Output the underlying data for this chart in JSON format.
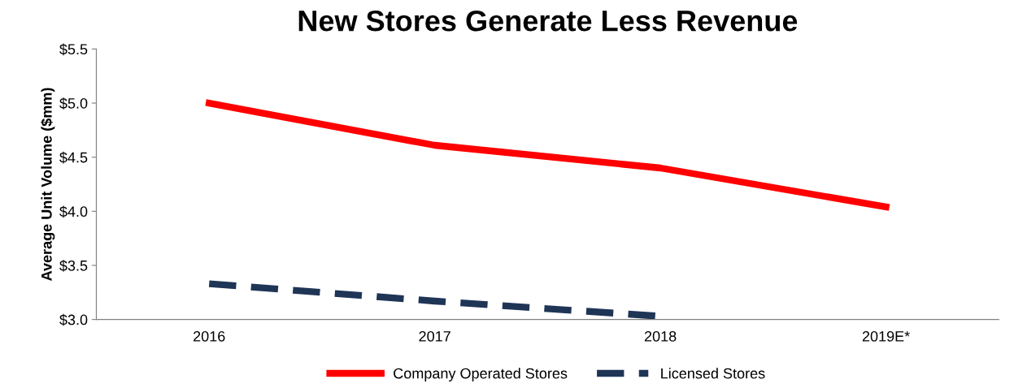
{
  "chart_data": {
    "type": "line",
    "title": "New Stores Generate Less Revenue",
    "ylabel": "Average Unit Volume ($mm)",
    "categories": [
      "2016",
      "2017",
      "2018",
      "2019E*"
    ],
    "series": [
      {
        "name": "Company Operated Stores",
        "color": "#ff0000",
        "values": [
          5.0,
          4.61,
          4.4,
          4.04
        ],
        "line_style": "solid"
      },
      {
        "name": "Licensed Stores",
        "color": "#1f3556",
        "values": [
          3.33,
          3.17,
          3.03,
          null
        ],
        "line_style": "dashed"
      }
    ],
    "ylim": [
      3.0,
      5.5
    ],
    "yticks": [
      {
        "value": 3.0,
        "label": "$3.0"
      },
      {
        "value": 3.5,
        "label": "$3.5"
      },
      {
        "value": 4.0,
        "label": "$4.0"
      },
      {
        "value": 4.5,
        "label": "$4.5"
      },
      {
        "value": 5.0,
        "label": "$5.0"
      },
      {
        "value": 5.5,
        "label": "$5.5"
      }
    ],
    "grid": false,
    "legend": "bottom",
    "marker": "none"
  }
}
